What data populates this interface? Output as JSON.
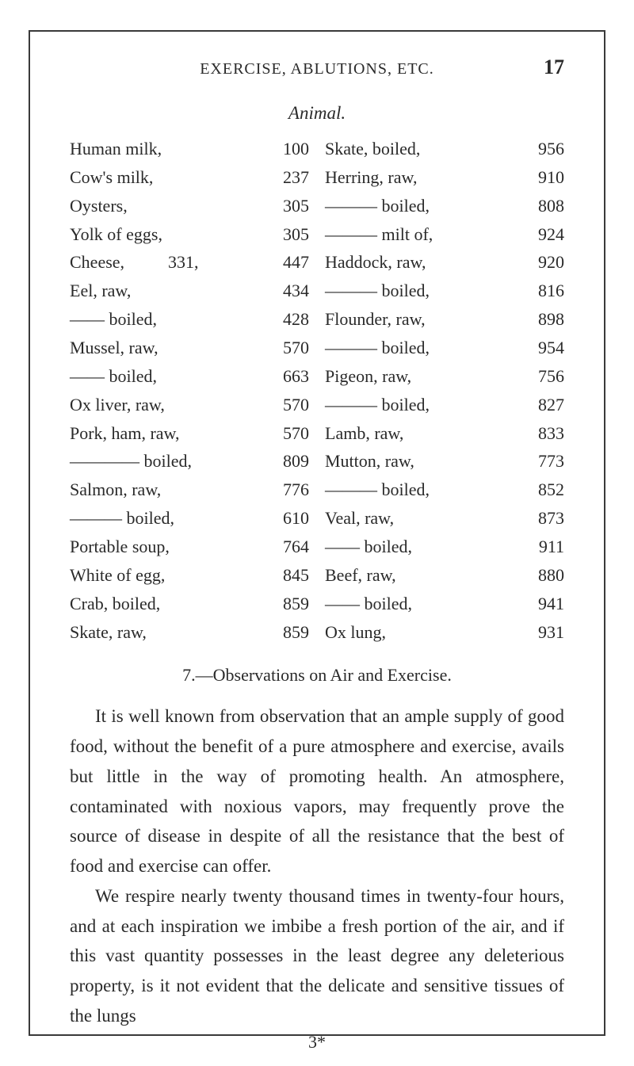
{
  "page": {
    "running_head": "EXERCISE, ABLUTIONS, ETC.",
    "page_number": "17",
    "subtitle": "Animal.",
    "signature": "3*"
  },
  "table": {
    "left": [
      {
        "label": "Human milk,",
        "value": "100"
      },
      {
        "label": "Cow's milk,",
        "value": "237"
      },
      {
        "label": "Oysters,",
        "value": "305"
      },
      {
        "label": "Yolk of eggs,",
        "value": "305"
      },
      {
        "label": "Cheese,          331,",
        "value": "447"
      },
      {
        "label": "Eel, raw,",
        "value": "434"
      },
      {
        "label": "—— boiled,",
        "value": "428"
      },
      {
        "label": "Mussel, raw,",
        "value": "570"
      },
      {
        "label": "—— boiled,",
        "value": "663"
      },
      {
        "label": "Ox liver, raw,",
        "value": "570"
      },
      {
        "label": "Pork, ham, raw,",
        "value": "570"
      },
      {
        "label": "———— boiled,",
        "value": "809"
      },
      {
        "label": "Salmon, raw,",
        "value": "776"
      },
      {
        "label": "——— boiled,",
        "value": "610"
      },
      {
        "label": "Portable soup,",
        "value": "764"
      },
      {
        "label": "White of egg,",
        "value": "845"
      },
      {
        "label": "Crab, boiled,",
        "value": "859"
      },
      {
        "label": "Skate, raw,",
        "value": "859"
      }
    ],
    "right": [
      {
        "label": "Skate, boiled,",
        "value": "956"
      },
      {
        "label": "Herring, raw,",
        "value": "910"
      },
      {
        "label": "——— boiled,",
        "value": "808"
      },
      {
        "label": "——— milt of,",
        "value": "924"
      },
      {
        "label": "Haddock, raw,",
        "value": "920"
      },
      {
        "label": "——— boiled,",
        "value": "816"
      },
      {
        "label": "Flounder, raw,",
        "value": "898"
      },
      {
        "label": "——— boiled,",
        "value": "954"
      },
      {
        "label": "Pigeon, raw,",
        "value": "756"
      },
      {
        "label": "——— boiled,",
        "value": "827"
      },
      {
        "label": "Lamb, raw,",
        "value": "833"
      },
      {
        "label": "Mutton, raw,",
        "value": "773"
      },
      {
        "label": "——— boiled,",
        "value": "852"
      },
      {
        "label": "Veal, raw,",
        "value": "873"
      },
      {
        "label": "—— boiled,",
        "value": "911"
      },
      {
        "label": "Beef, raw,",
        "value": "880"
      },
      {
        "label": "—— boiled,",
        "value": "941"
      },
      {
        "label": "Ox lung,",
        "value": "931"
      }
    ]
  },
  "section": {
    "title": "7.—Observations on Air and Exercise.",
    "paragraphs": [
      "It is well known from observation that an ample supply of good food, without the benefit of a pure atmosphere and exercise, avails but little in the way of promoting health. An atmosphere, contaminated with noxious vapors, may frequently prove the source of disease in despite of all the resistance that the best of food and exercise can offer.",
      "We respire nearly twenty thousand times in twenty-four hours, and at each inspiration we imbibe a fresh portion of the air, and if this vast quantity possesses in the least degree any deleterious property, is it not evident that the delicate and sensitive tissues of the lungs"
    ]
  },
  "style": {
    "text_color": "#2a2a2a",
    "background_color": "#ffffff",
    "border_color": "#3a3a3a",
    "body_fontsize": 23,
    "table_fontsize": 22,
    "line_height": 1.64
  }
}
